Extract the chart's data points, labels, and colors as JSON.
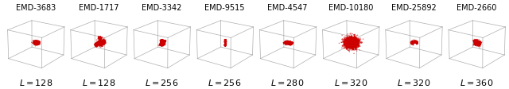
{
  "entries": [
    {
      "title": "EMD-3683",
      "label": "L = 128"
    },
    {
      "title": "EMD-1717",
      "label": "L = 128"
    },
    {
      "title": "EMD-3342",
      "label": "L = 256"
    },
    {
      "title": "EMD-9515",
      "label": "L = 256"
    },
    {
      "title": "EMD-4547",
      "label": "L = 280"
    },
    {
      "title": "EMD-10180",
      "label": "L = 320"
    },
    {
      "title": "EMD-25892",
      "label": "L = 320"
    },
    {
      "title": "EMD-2660",
      "label": "L = 360"
    }
  ],
  "box_color": "#999999",
  "blob_color": "#cc0000",
  "bg_color": "#ffffff",
  "title_fontsize": 7.0,
  "label_fontsize": 8.0,
  "fig_width": 6.4,
  "fig_height": 1.12,
  "dpi": 100
}
